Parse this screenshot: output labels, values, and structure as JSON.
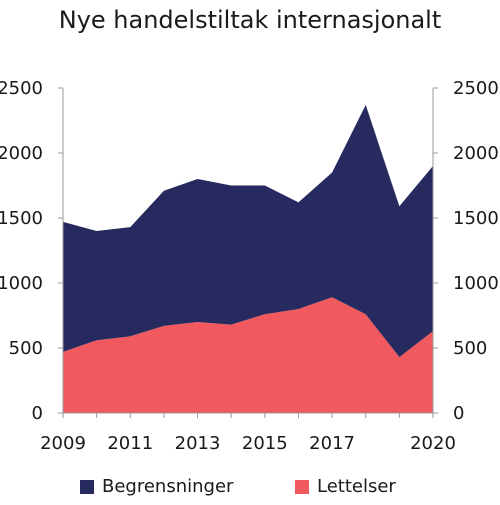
{
  "chart_data": {
    "type": "area",
    "title": "Nye handelstiltak internasjonalt",
    "stacked": true,
    "x": [
      2009,
      2010,
      2011,
      2012,
      2013,
      2014,
      2015,
      2016,
      2017,
      2018,
      2019,
      2020
    ],
    "x_tick_labels": [
      "2009",
      "2011",
      "2013",
      "2015",
      "2017",
      "2020"
    ],
    "x_tick_values": [
      2009,
      2011,
      2013,
      2015,
      2017,
      2020
    ],
    "ylim": [
      0,
      2500
    ],
    "y_ticks": [
      0,
      500,
      1000,
      1500,
      2000,
      2500
    ],
    "y_ticks_both_sides": true,
    "series": [
      {
        "name": "Lettelser",
        "color": "#f05a5f",
        "values": [
          470,
          560,
          590,
          670,
          700,
          680,
          760,
          800,
          890,
          760,
          430,
          630
        ]
      },
      {
        "name": "Begrensninger",
        "color": "#262a5e",
        "values": [
          1000,
          840,
          840,
          1040,
          1100,
          1070,
          990,
          820,
          960,
          1610,
          1160,
          1270
        ]
      }
    ],
    "legend": {
      "position": "bottom",
      "items": [
        {
          "label": "Begrensninger",
          "color": "#262a5e"
        },
        {
          "label": "Lettelser",
          "color": "#f05a5f"
        }
      ]
    },
    "grid": false
  }
}
